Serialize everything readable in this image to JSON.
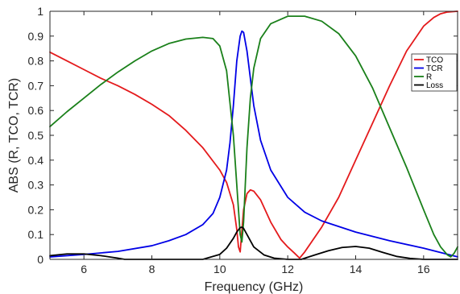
{
  "chart_data": {
    "type": "line",
    "title": "",
    "xlabel": "Frequency (GHz)",
    "ylabel": "ABS (R, TCO, TCR)",
    "xlim": [
      5,
      17
    ],
    "ylim": [
      0,
      1
    ],
    "xticks": [
      6,
      8,
      10,
      12,
      14,
      16
    ],
    "xtick_labels": [
      "6",
      "8",
      "10",
      "12",
      "14",
      "16"
    ],
    "yticks": [
      0,
      0.1,
      0.2,
      0.3,
      0.4,
      0.5,
      0.6,
      0.7,
      0.8,
      0.9,
      1
    ],
    "ytick_labels": [
      "0",
      "0.1",
      "0.2",
      "0.3",
      "0.4",
      "0.5",
      "0.6",
      "0.7",
      "0.8",
      "0.9",
      "1"
    ],
    "grid": false,
    "legend_position": "right",
    "series": [
      {
        "name": "TCO",
        "color": "#e41a1c",
        "x": [
          5,
          5.5,
          6,
          6.5,
          7,
          7.5,
          8,
          8.5,
          9,
          9.5,
          10,
          10.2,
          10.4,
          10.5,
          10.55,
          10.6,
          10.7,
          10.8,
          10.9,
          11.0,
          11.2,
          11.5,
          11.8,
          12.0,
          12.2,
          12.35,
          12.5,
          13,
          13.5,
          14,
          14.5,
          15,
          15.5,
          16,
          16.3,
          16.5,
          16.7,
          17
        ],
        "y": [
          0.835,
          0.8,
          0.765,
          0.73,
          0.7,
          0.665,
          0.625,
          0.58,
          0.52,
          0.45,
          0.36,
          0.31,
          0.22,
          0.12,
          0.05,
          0.03,
          0.2,
          0.265,
          0.28,
          0.275,
          0.24,
          0.15,
          0.08,
          0.05,
          0.025,
          0.005,
          0.03,
          0.13,
          0.25,
          0.4,
          0.55,
          0.7,
          0.84,
          0.94,
          0.975,
          0.99,
          0.997,
          1.0
        ]
      },
      {
        "name": "TCR",
        "color": "#0000e6",
        "x": [
          5,
          6,
          7,
          8,
          8.5,
          9,
          9.5,
          9.8,
          10,
          10.2,
          10.3,
          10.4,
          10.5,
          10.6,
          10.65,
          10.7,
          10.8,
          10.9,
          11,
          11.2,
          11.5,
          12,
          12.5,
          13,
          14,
          15,
          16,
          17
        ],
        "y": [
          0.01,
          0.02,
          0.032,
          0.055,
          0.075,
          0.1,
          0.14,
          0.185,
          0.25,
          0.36,
          0.47,
          0.62,
          0.8,
          0.9,
          0.92,
          0.915,
          0.84,
          0.73,
          0.62,
          0.48,
          0.36,
          0.25,
          0.19,
          0.155,
          0.11,
          0.075,
          0.045,
          0.01
        ]
      },
      {
        "name": "R",
        "color": "#1a801a",
        "x": [
          5,
          5.5,
          6,
          6.5,
          7,
          7.5,
          8,
          8.5,
          9,
          9.5,
          9.8,
          10.0,
          10.2,
          10.4,
          10.5,
          10.6,
          10.65,
          10.7,
          10.8,
          10.9,
          11,
          11.2,
          11.5,
          12,
          12.5,
          13,
          13.5,
          14,
          14.5,
          15,
          15.5,
          16,
          16.3,
          16.5,
          16.7,
          16.8,
          16.9,
          17
        ],
        "y": [
          0.535,
          0.595,
          0.65,
          0.705,
          0.755,
          0.8,
          0.84,
          0.87,
          0.888,
          0.895,
          0.89,
          0.86,
          0.76,
          0.5,
          0.3,
          0.1,
          0.07,
          0.15,
          0.45,
          0.65,
          0.77,
          0.89,
          0.95,
          0.98,
          0.98,
          0.96,
          0.91,
          0.82,
          0.69,
          0.53,
          0.37,
          0.2,
          0.1,
          0.05,
          0.018,
          0.01,
          0.025,
          0.05
        ]
      },
      {
        "name": "Loss",
        "color": "#000000",
        "x": [
          5,
          5.5,
          6,
          6.5,
          7,
          7.2,
          9.5,
          10.0,
          10.2,
          10.4,
          10.5,
          10.6,
          10.65,
          10.7,
          10.8,
          11,
          11.3,
          11.6,
          12,
          12.4,
          12.8,
          13.2,
          13.6,
          14,
          14.4,
          14.8,
          15.2,
          15.6,
          16,
          16.5,
          17
        ],
        "y": [
          0.015,
          0.022,
          0.022,
          0.015,
          0.005,
          0.0,
          0.0,
          0.02,
          0.045,
          0.085,
          0.11,
          0.128,
          0.13,
          0.125,
          0.1,
          0.05,
          0.018,
          0.005,
          0.0,
          0.0,
          0.018,
          0.035,
          0.048,
          0.052,
          0.045,
          0.028,
          0.012,
          0.004,
          0.0,
          0.0,
          0.0
        ]
      }
    ]
  }
}
